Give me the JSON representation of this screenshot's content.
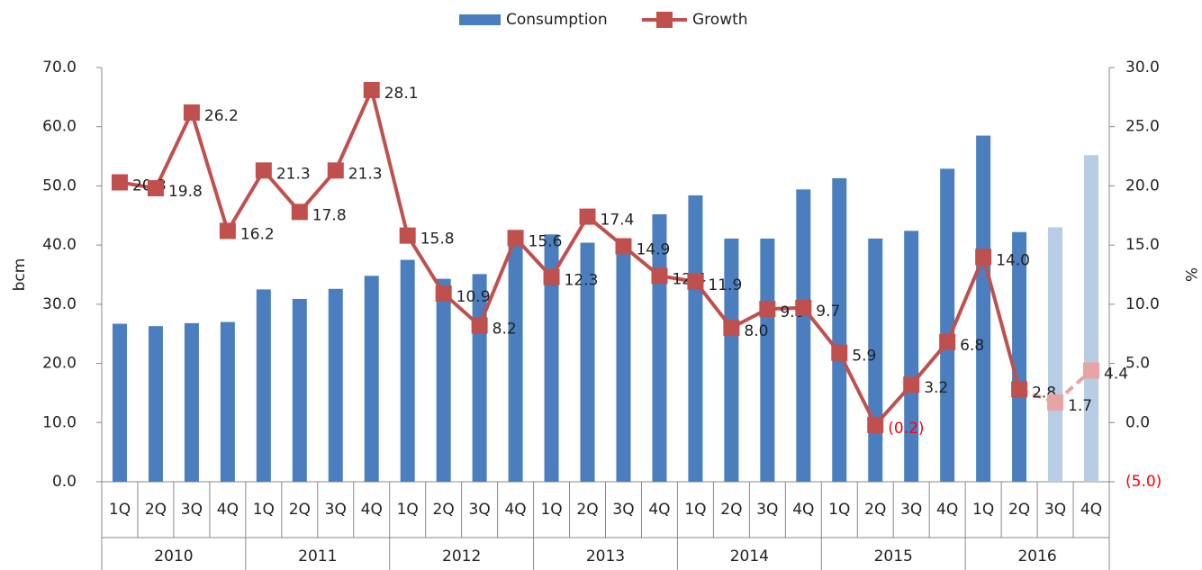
{
  "chart_data": {
    "type": "bar-line",
    "categories": [
      "1Q",
      "2Q",
      "3Q",
      "4Q",
      "1Q",
      "2Q",
      "3Q",
      "4Q",
      "1Q",
      "2Q",
      "3Q",
      "4Q",
      "1Q",
      "2Q",
      "3Q",
      "4Q",
      "1Q",
      "2Q",
      "3Q",
      "4Q",
      "1Q",
      "2Q",
      "3Q",
      "4Q",
      "1Q",
      "2Q",
      "3Q",
      "4Q"
    ],
    "years": [
      "2010",
      "2011",
      "2012",
      "2013",
      "2014",
      "2015",
      "2016"
    ],
    "ylabel": "bcm",
    "y2label": "%",
    "ylim": [
      0,
      70
    ],
    "yticks": [
      {
        "value": 0,
        "label": "0.0"
      },
      {
        "value": 10,
        "label": "10.0"
      },
      {
        "value": 20,
        "label": "20.0"
      },
      {
        "value": 30,
        "label": "30.0"
      },
      {
        "value": 40,
        "label": "40.0"
      },
      {
        "value": 50,
        "label": "50.0"
      },
      {
        "value": 60,
        "label": "60.0"
      },
      {
        "value": 70,
        "label": "70.0"
      }
    ],
    "y2lim": [
      -5,
      30
    ],
    "y2ticks": [
      {
        "value": -5,
        "label": "(5.0)"
      },
      {
        "value": 0,
        "label": "0.0"
      },
      {
        "value": 5,
        "label": "5.0"
      },
      {
        "value": 10,
        "label": "10.0"
      },
      {
        "value": 15,
        "label": "15.0"
      },
      {
        "value": 20,
        "label": "20.0"
      },
      {
        "value": 25,
        "label": "25.0"
      },
      {
        "value": 30,
        "label": "30.0"
      }
    ],
    "series": [
      {
        "name": "Consumption",
        "type": "bar",
        "color": "#4a7ebf",
        "point_colors": [
          "#4a7ebf",
          "#4a7ebf",
          "#4a7ebf",
          "#4a7ebf",
          "#4a7ebf",
          "#4a7ebf",
          "#4a7ebf",
          "#4a7ebf",
          "#4a7ebf",
          "#4a7ebf",
          "#4a7ebf",
          "#4a7ebf",
          "#4a7ebf",
          "#4a7ebf",
          "#4a7ebf",
          "#4a7ebf",
          "#4a7ebf",
          "#4a7ebf",
          "#4a7ebf",
          "#4a7ebf",
          "#4a7ebf",
          "#4a7ebf",
          "#4a7ebf",
          "#4a7ebf",
          "#4a7ebf",
          "#4a7ebf",
          "#b8cce4",
          "#b8cce4"
        ],
        "values": [
          26.7,
          26.3,
          26.8,
          27.0,
          32.5,
          30.9,
          32.6,
          34.8,
          37.5,
          34.3,
          35.1,
          40.5,
          41.8,
          40.4,
          40.5,
          45.2,
          48.4,
          41.1,
          41.1,
          49.4,
          51.3,
          41.1,
          42.4,
          52.9,
          58.5,
          42.2,
          43.0,
          55.2
        ]
      },
      {
        "name": "Growth",
        "type": "line",
        "axis": "y2",
        "color": "#c0504d",
        "point_colors": [
          "#c0504d",
          "#c0504d",
          "#c0504d",
          "#c0504d",
          "#c0504d",
          "#c0504d",
          "#c0504d",
          "#c0504d",
          "#c0504d",
          "#c0504d",
          "#c0504d",
          "#c0504d",
          "#c0504d",
          "#c0504d",
          "#c0504d",
          "#c0504d",
          "#c0504d",
          "#c0504d",
          "#c0504d",
          "#c0504d",
          "#c0504d",
          "#c0504d",
          "#c0504d",
          "#c0504d",
          "#c0504d",
          "#c0504d",
          "#e6a5a3",
          "#e6a5a3"
        ],
        "values": [
          20.3,
          19.8,
          26.2,
          16.2,
          21.3,
          17.8,
          21.3,
          28.1,
          15.8,
          10.9,
          8.2,
          15.6,
          12.3,
          17.4,
          14.9,
          12.4,
          11.9,
          8.0,
          9.6,
          9.7,
          5.9,
          -0.2,
          3.2,
          6.8,
          14.0,
          2.8,
          1.7,
          4.4
        ],
        "value_labels": [
          "20.3",
          "19.8",
          "26.2",
          "16.2",
          "21.3",
          "17.8",
          "21.3",
          "28.1",
          "15.8",
          "10.9",
          "8.2",
          "15.6",
          "12.3",
          "17.4",
          "14.9",
          "12.4",
          "11.9",
          "8.0",
          "9.6",
          "9.7",
          "5.9",
          "(0.2)",
          "3.2",
          "6.8",
          "14.0",
          "2.8",
          "1.7",
          "4.4"
        ]
      }
    ]
  }
}
